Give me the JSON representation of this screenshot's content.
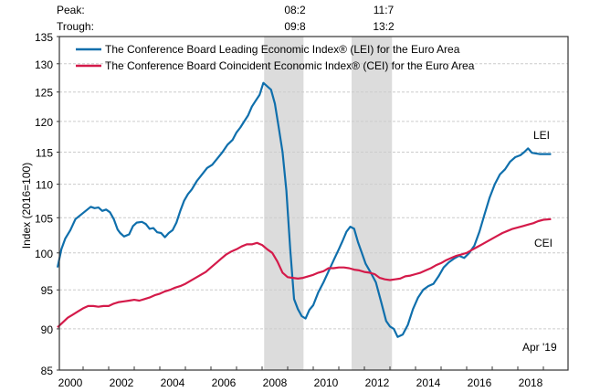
{
  "chart_data": {
    "type": "line",
    "title": "",
    "header": {
      "peak_label": "Peak:",
      "trough_label": "Trough:",
      "recessions": [
        {
          "peak": "08:2",
          "trough": "09:8"
        },
        {
          "peak": "11:7",
          "trough": "13:2"
        }
      ]
    },
    "recession_periods": [
      {
        "start": 2008.08,
        "end": 2009.62
      },
      {
        "start": 2011.5,
        "end": 2013.08
      }
    ],
    "ylabel": "Index (2016=100)",
    "xlabel": "",
    "yscale": "log",
    "ylim": [
      85,
      135
    ],
    "yticks": [
      85,
      90,
      95,
      100,
      105,
      110,
      115,
      120,
      125,
      130,
      135
    ],
    "xlim": [
      2000.0,
      2019.9
    ],
    "xtick_labels": [
      "2000",
      "2002",
      "2004",
      "2006",
      "2008",
      "2010",
      "2012",
      "2014",
      "2016",
      "2018"
    ],
    "grid": "horizontal dashed",
    "legend": {
      "placement": "top-left",
      "entries": [
        {
          "label": "The Conference Board Leading Economic Index® (LEI) for the Euro Area",
          "color": "#0f6fac"
        },
        {
          "label": "The Conference Board Coincident Economic Index® (CEI) for the Euro Area",
          "color": "#d41a4a"
        }
      ]
    },
    "annotations": {
      "lei_label": "LEI",
      "cei_label": "CEI",
      "date_label": "Apr '19"
    },
    "series": [
      {
        "name": "LEI",
        "color": "#0f6fac",
        "x": [
          2000.0,
          2000.15,
          2000.3,
          2000.5,
          2000.7,
          2000.9,
          2001.1,
          2001.3,
          2001.45,
          2001.6,
          2001.75,
          2001.9,
          2002.05,
          2002.2,
          2002.35,
          2002.45,
          2002.6,
          2002.8,
          2002.95,
          2003.1,
          2003.3,
          2003.45,
          2003.6,
          2003.75,
          2003.9,
          2004.05,
          2004.2,
          2004.35,
          2004.5,
          2004.65,
          2004.8,
          2004.95,
          2005.1,
          2005.25,
          2005.45,
          2005.65,
          2005.85,
          2006.05,
          2006.25,
          2006.45,
          2006.65,
          2006.85,
          2007.0,
          2007.15,
          2007.3,
          2007.45,
          2007.6,
          2007.75,
          2007.9,
          2008.05,
          2008.2,
          2008.35,
          2008.5,
          2008.65,
          2008.8,
          2008.95,
          2009.1,
          2009.25,
          2009.4,
          2009.55,
          2009.7,
          2009.85,
          2010.0,
          2010.2,
          2010.4,
          2010.6,
          2010.8,
          2011.0,
          2011.15,
          2011.3,
          2011.45,
          2011.6,
          2011.75,
          2011.9,
          2012.05,
          2012.25,
          2012.45,
          2012.65,
          2012.85,
          2013.0,
          2013.15,
          2013.3,
          2013.5,
          2013.7,
          2013.9,
          2014.1,
          2014.3,
          2014.5,
          2014.7,
          2014.9,
          2015.1,
          2015.3,
          2015.5,
          2015.7,
          2015.9,
          2016.1,
          2016.3,
          2016.5,
          2016.7,
          2016.9,
          2017.1,
          2017.3,
          2017.5,
          2017.7,
          2017.9,
          2018.1,
          2018.25,
          2018.4,
          2018.55,
          2018.7,
          2018.85,
          2019.0,
          2019.15,
          2019.3
        ],
        "values": [
          98.0,
          100.5,
          102.0,
          103.2,
          104.8,
          105.4,
          106.0,
          106.6,
          106.4,
          106.5,
          106.0,
          106.2,
          105.8,
          104.8,
          103.3,
          102.8,
          102.3,
          102.6,
          103.8,
          104.3,
          104.4,
          104.1,
          103.4,
          103.5,
          102.9,
          102.8,
          102.2,
          102.8,
          103.2,
          104.3,
          106.0,
          107.5,
          108.5,
          109.2,
          110.5,
          111.5,
          112.5,
          113.0,
          114.0,
          115.0,
          116.2,
          117.0,
          118.2,
          119.0,
          120.0,
          121.0,
          122.5,
          123.5,
          124.5,
          126.6,
          126.0,
          125.4,
          123.0,
          119.0,
          115.0,
          109.0,
          100.5,
          93.8,
          92.5,
          91.6,
          91.3,
          92.4,
          93.0,
          94.7,
          96.0,
          97.5,
          99.0,
          100.5,
          101.7,
          103.0,
          103.7,
          103.4,
          101.5,
          100.0,
          98.5,
          97.3,
          96.0,
          93.5,
          91.0,
          90.3,
          90.0,
          89.0,
          89.3,
          90.5,
          92.5,
          94.0,
          95.0,
          95.5,
          95.8,
          96.8,
          98.0,
          98.7,
          99.2,
          99.6,
          99.3,
          100.0,
          101.0,
          103.0,
          105.5,
          108.0,
          110.0,
          111.5,
          112.3,
          113.5,
          114.2,
          114.5,
          115.0,
          115.6,
          114.9,
          114.8,
          114.7,
          114.7,
          114.7,
          114.7
        ]
      },
      {
        "name": "CEI",
        "color": "#d41a4a",
        "x": [
          2000.0,
          2000.2,
          2000.4,
          2000.6,
          2000.8,
          2001.0,
          2001.2,
          2001.4,
          2001.6,
          2001.8,
          2002.0,
          2002.2,
          2002.4,
          2002.6,
          2002.8,
          2003.0,
          2003.2,
          2003.4,
          2003.6,
          2003.8,
          2004.0,
          2004.2,
          2004.4,
          2004.6,
          2004.8,
          2005.0,
          2005.2,
          2005.4,
          2005.6,
          2005.8,
          2006.0,
          2006.2,
          2006.4,
          2006.6,
          2006.8,
          2007.0,
          2007.2,
          2007.4,
          2007.6,
          2007.8,
          2008.0,
          2008.2,
          2008.4,
          2008.6,
          2008.8,
          2009.0,
          2009.2,
          2009.4,
          2009.6,
          2009.8,
          2010.0,
          2010.2,
          2010.4,
          2010.6,
          2010.8,
          2011.0,
          2011.2,
          2011.4,
          2011.6,
          2011.8,
          2012.0,
          2012.2,
          2012.4,
          2012.6,
          2012.8,
          2013.0,
          2013.2,
          2013.4,
          2013.6,
          2013.8,
          2014.0,
          2014.2,
          2014.4,
          2014.6,
          2014.8,
          2015.0,
          2015.2,
          2015.4,
          2015.6,
          2015.8,
          2016.0,
          2016.2,
          2016.4,
          2016.6,
          2016.8,
          2017.0,
          2017.2,
          2017.4,
          2017.6,
          2017.8,
          2018.0,
          2018.2,
          2018.4,
          2018.6,
          2018.8,
          2019.0,
          2019.3
        ],
        "values": [
          90.2,
          90.8,
          91.4,
          91.8,
          92.2,
          92.6,
          92.9,
          92.9,
          92.8,
          92.9,
          92.9,
          93.2,
          93.4,
          93.5,
          93.6,
          93.7,
          93.6,
          93.8,
          94.0,
          94.3,
          94.5,
          94.8,
          95.0,
          95.3,
          95.5,
          95.8,
          96.2,
          96.6,
          97.0,
          97.4,
          98.0,
          98.6,
          99.2,
          99.8,
          100.2,
          100.5,
          100.9,
          101.2,
          101.2,
          101.4,
          101.1,
          100.5,
          100.0,
          98.8,
          97.3,
          96.7,
          96.6,
          96.5,
          96.6,
          96.8,
          97.0,
          97.3,
          97.5,
          97.9,
          97.9,
          98.0,
          98.0,
          97.9,
          97.7,
          97.6,
          97.4,
          97.3,
          97.1,
          96.6,
          96.4,
          96.3,
          96.4,
          96.5,
          96.8,
          96.9,
          97.1,
          97.3,
          97.6,
          97.9,
          98.3,
          98.6,
          99.0,
          99.3,
          99.6,
          99.8,
          100.0,
          100.4,
          100.8,
          101.2,
          101.6,
          102.0,
          102.4,
          102.8,
          103.1,
          103.4,
          103.6,
          103.8,
          104.0,
          104.2,
          104.5,
          104.7,
          104.8
        ]
      }
    ]
  }
}
